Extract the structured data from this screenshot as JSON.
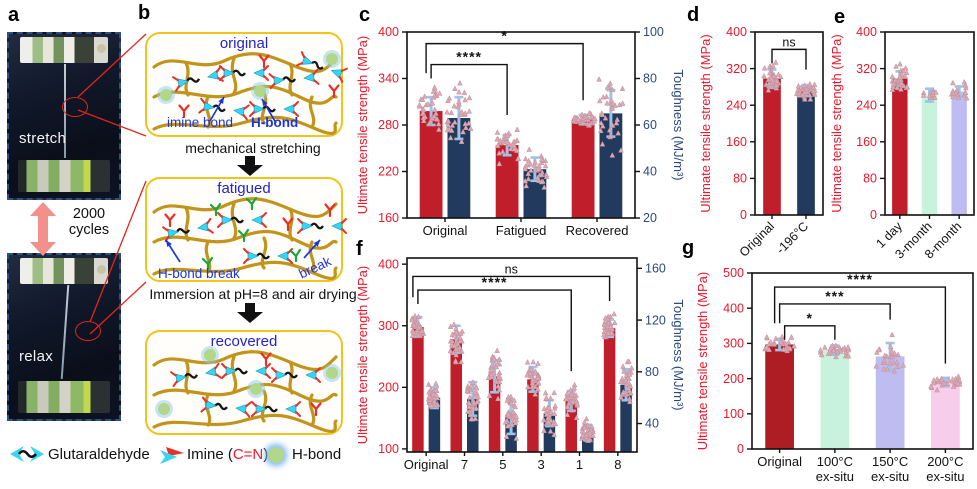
{
  "a": {
    "letter": "a",
    "stretch_caption": "stretch",
    "relax_caption": "relax",
    "cycles_text": "2000 cycles"
  },
  "b": {
    "letter": "b",
    "box1_title": "original",
    "box2_title": "fatigued",
    "box3_title": "recovered",
    "imine_label": "imine bond",
    "hbond_label": "H-bond",
    "hbond_break_label": "H-bond break",
    "break_label": "break",
    "step1": "mechanical stretching",
    "step2": "Immersion at pH=8 and air drying"
  },
  "legend": {
    "glutaraldehyde": "Glutaraldehyde",
    "imine_prefix": "Imine (",
    "imine_formula": "C=N",
    "imine_suffix": ")",
    "hbond": "H-bond"
  },
  "colors": {
    "red_bar": "#c01e2a",
    "navy_bar": "#223a5e",
    "dark_red_bar": "#ae1c24",
    "mint_bar": "#c9f2dd",
    "lavender_bar": "#bfbcf2",
    "pink_bar": "#f8cceb",
    "error_bar": "#9fc2e6",
    "scatter": "#dcaab4",
    "left_axis_text": "#e8192c",
    "right_axis_text": "#2b4a7d",
    "box_border": "#f2c318",
    "schematic_blue": "#2222d6",
    "connector_red": "#e1251b"
  },
  "chart_data": [
    {
      "letter": "c",
      "type": "bar",
      "categories": [
        "Original",
        "Fatigued",
        "Recovered"
      ],
      "left_axis": {
        "label": "Ultimate tensile strength (MPa)",
        "min": 160,
        "max": 400,
        "ticks": [
          160,
          220,
          280,
          340,
          400
        ]
      },
      "right_axis": {
        "label": "Toughness (MJ/m³)",
        "min": 20,
        "max": 100,
        "ticks": [
          20,
          40,
          60,
          80,
          100
        ]
      },
      "series": [
        {
          "name": "Ultimate tensile strength (MPa)",
          "axis": "left",
          "color": "#c01e2a",
          "values": [
            298,
            254,
            287
          ],
          "errors": [
            18,
            13,
            6
          ]
        },
        {
          "name": "Toughness (MJ/m³)",
          "axis": "right",
          "color": "#223a5e",
          "values": [
            63,
            41,
            65
          ],
          "errors": [
            9,
            5,
            10
          ]
        }
      ],
      "significance": [
        {
          "from": 0,
          "to": 1,
          "label": "****",
          "y": 358
        },
        {
          "from": 0,
          "to": 2,
          "label": "*",
          "y": 385,
          "x1off": -5
        }
      ]
    },
    {
      "letter": "d",
      "type": "bar",
      "categories": [
        "Original",
        "-196°C"
      ],
      "left_axis": {
        "label": "Ultimate tensile strength (MPa)",
        "min": 0,
        "max": 400,
        "ticks": [
          0,
          80,
          160,
          240,
          320,
          400
        ]
      },
      "series": [
        {
          "name": "Ultimate tensile strength (MPa)",
          "axis": "left",
          "colors": [
            "#c01e2a",
            "#223a5e"
          ],
          "values": [
            298,
            272
          ],
          "errors": [
            20,
            12
          ],
          "points": [
            38,
            38
          ]
        }
      ],
      "significance": [
        {
          "from": 0,
          "to": 1,
          "label": "ns",
          "y": 362
        }
      ]
    },
    {
      "letter": "e",
      "type": "bar",
      "categories": [
        "1 day",
        "3-month",
        "8-month"
      ],
      "left_axis": {
        "label": "Ultimate tensile strength (MPa)",
        "min": 0,
        "max": 400,
        "ticks": [
          0,
          80,
          160,
          240,
          320,
          400
        ]
      },
      "series": [
        {
          "name": "Ultimate tensile strength (MPa)",
          "axis": "left",
          "colors": [
            "#c01e2a",
            "#c9f2dd",
            "#bfbcf2"
          ],
          "values": [
            298,
            262,
            270
          ],
          "errors": [
            16,
            14,
            11
          ],
          "points": [
            34,
            12,
            16
          ]
        }
      ],
      "significance": []
    },
    {
      "letter": "f",
      "type": "bar",
      "categories": [
        "Original",
        "7",
        "5",
        "3",
        "1",
        "8"
      ],
      "left_axis": {
        "label": "Ultimate tensile strength (MPa)",
        "min": 95,
        "max": 410,
        "ticks": [
          100,
          200,
          300,
          400
        ]
      },
      "right_axis": {
        "label": "Toughness (MJ/m³)",
        "min": 18,
        "max": 168,
        "ticks": [
          40,
          80,
          120,
          160
        ]
      },
      "series": [
        {
          "name": "Ultimate tensile strength (MPa)",
          "axis": "left",
          "color": "#c01e2a",
          "values": [
            298,
            278,
            218,
            213,
            178,
            296
          ],
          "errors": [
            16,
            22,
            26,
            20,
            16,
            14
          ]
        },
        {
          "name": "Toughness (MJ/m³)",
          "axis": "right",
          "color": "#223a5e",
          "values": [
            60,
            59,
            45,
            48,
            33,
            70
          ],
          "errors": [
            8,
            13,
            13,
            10,
            6,
            12
          ]
        }
      ],
      "significance": [
        {
          "from": 0,
          "to": 4,
          "label": "****",
          "y": 358
        },
        {
          "from": 0,
          "to": 5,
          "label": "ns",
          "y": 380,
          "x1off": -5
        }
      ]
    },
    {
      "letter": "g",
      "type": "bar",
      "categories": [
        "Original",
        "100°C\nex-situ",
        "150°C\nex-situ",
        "200°C\nex-situ"
      ],
      "left_axis": {
        "label": "Ultimate tensile strength (MPa)",
        "min": 0,
        "max": 500,
        "ticks": [
          0,
          100,
          200,
          300,
          400,
          500
        ]
      },
      "series": [
        {
          "name": "Ultimate tensile strength (MPa)",
          "axis": "left",
          "colors": [
            "#ae1c24",
            "#c9f2dd",
            "#bfbcf2",
            "#f8cceb"
          ],
          "values": [
            297,
            281,
            263,
            190
          ],
          "errors": [
            16,
            13,
            38,
            12
          ],
          "points": [
            32,
            28,
            26,
            30
          ]
        }
      ],
      "significance": [
        {
          "from": 0,
          "to": 1,
          "label": "*",
          "y": 350,
          "x1off": 5
        },
        {
          "from": 0,
          "to": 2,
          "label": "***",
          "y": 412
        },
        {
          "from": 0,
          "to": 3,
          "label": "****",
          "y": 460,
          "x1off": -5
        }
      ]
    }
  ]
}
